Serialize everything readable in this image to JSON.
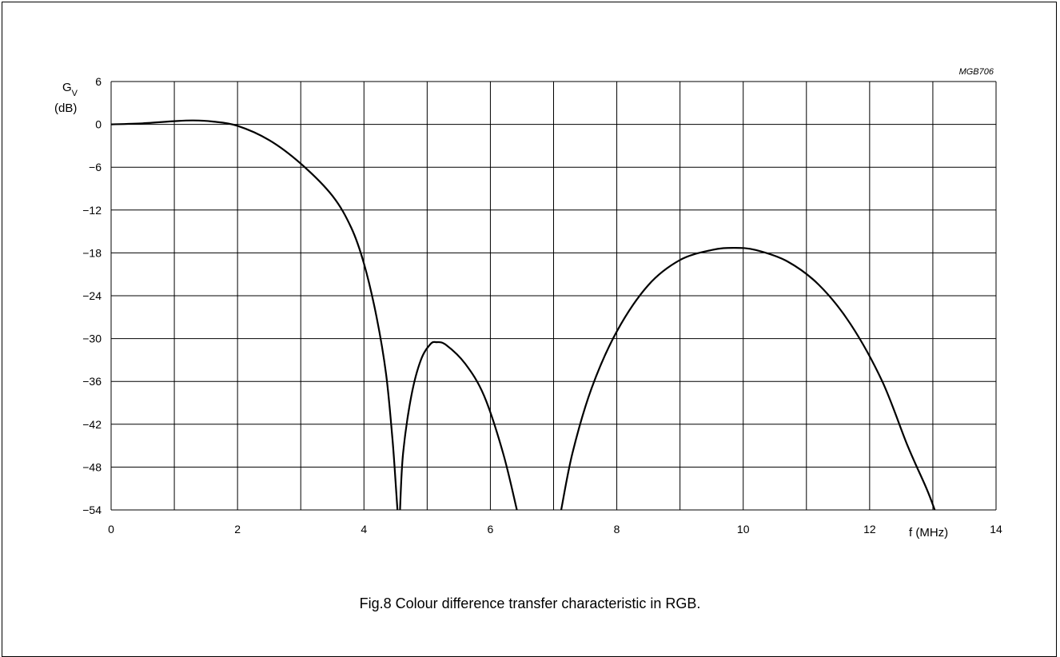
{
  "figure_code": "MGB706",
  "caption": "Fig.8  Colour difference transfer characteristic in RGB.",
  "chart_data": {
    "type": "line",
    "ylabel": "G",
    "ylabel_sub": "V",
    "ylabel_unit": "(dB)",
    "xlabel": "f  (MHz)",
    "xlim": [
      0,
      14
    ],
    "ylim": [
      -54,
      6
    ],
    "x_ticks": [
      0,
      2,
      4,
      6,
      8,
      10,
      12,
      14
    ],
    "y_ticks": [
      6,
      0,
      -6,
      -12,
      -18,
      -24,
      -30,
      -36,
      -42,
      -48,
      -54
    ],
    "x_grid_step": 1,
    "grid": true,
    "series": [
      {
        "segments": [
          [
            [
              0,
              0
            ],
            [
              0.5,
              0.15
            ],
            [
              1,
              0.45
            ],
            [
              1.3,
              0.55
            ],
            [
              1.6,
              0.4
            ],
            [
              2,
              -0.2
            ],
            [
              2.5,
              -2.2
            ],
            [
              3,
              -5.5
            ],
            [
              3.5,
              -10
            ],
            [
              3.8,
              -14.5
            ],
            [
              4,
              -19.5
            ],
            [
              4.2,
              -27
            ],
            [
              4.35,
              -35
            ],
            [
              4.45,
              -44
            ],
            [
              4.5,
              -50
            ],
            [
              4.53,
              -54
            ]
          ],
          [
            [
              4.57,
              -54
            ],
            [
              4.62,
              -46
            ],
            [
              4.75,
              -38
            ],
            [
              4.9,
              -33
            ],
            [
              5.05,
              -30.8
            ],
            [
              5.15,
              -30.5
            ],
            [
              5.3,
              -30.9
            ],
            [
              5.6,
              -33.5
            ],
            [
              5.9,
              -38
            ],
            [
              6.2,
              -46
            ],
            [
              6.42,
              -54
            ]
          ],
          [
            [
              7.12,
              -54
            ],
            [
              7.3,
              -46
            ],
            [
              7.6,
              -37
            ],
            [
              8,
              -29
            ],
            [
              8.5,
              -22.5
            ],
            [
              9,
              -19
            ],
            [
              9.5,
              -17.6
            ],
            [
              9.85,
              -17.3
            ],
            [
              10.2,
              -17.6
            ],
            [
              10.7,
              -19.2
            ],
            [
              11.2,
              -22.5
            ],
            [
              11.7,
              -28
            ],
            [
              12.2,
              -36
            ],
            [
              12.6,
              -45
            ],
            [
              12.9,
              -51
            ],
            [
              13.03,
              -54
            ]
          ]
        ]
      }
    ]
  }
}
